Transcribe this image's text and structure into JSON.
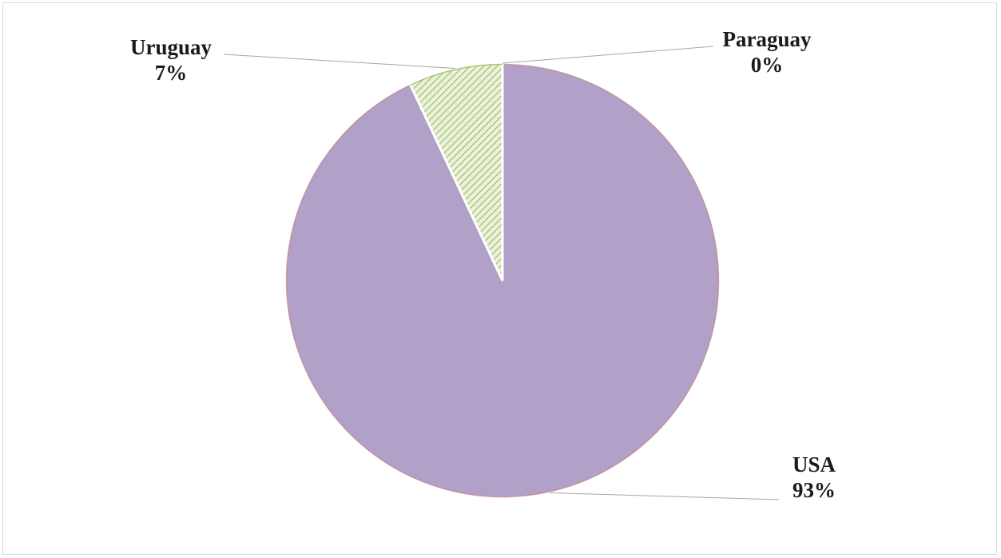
{
  "chart_data": {
    "type": "pie",
    "title": "",
    "slices": [
      {
        "label": "USA",
        "value": 93,
        "display": "93%",
        "color": "#b1a0c7",
        "edge": "#c0808a"
      },
      {
        "label": "Uruguay",
        "value": 7,
        "display": "7%",
        "color": "#d7e4bd",
        "edge": "#8fb04a",
        "pattern": "diagonal-hatch"
      },
      {
        "label": "Paraguay",
        "value": 0,
        "display": "0%",
        "color": "#f2dcdb",
        "edge": "#c0808a"
      }
    ],
    "start_angle_deg": 0,
    "direction": "clockwise",
    "legend": "none",
    "data_labels": "outside with leader lines"
  }
}
